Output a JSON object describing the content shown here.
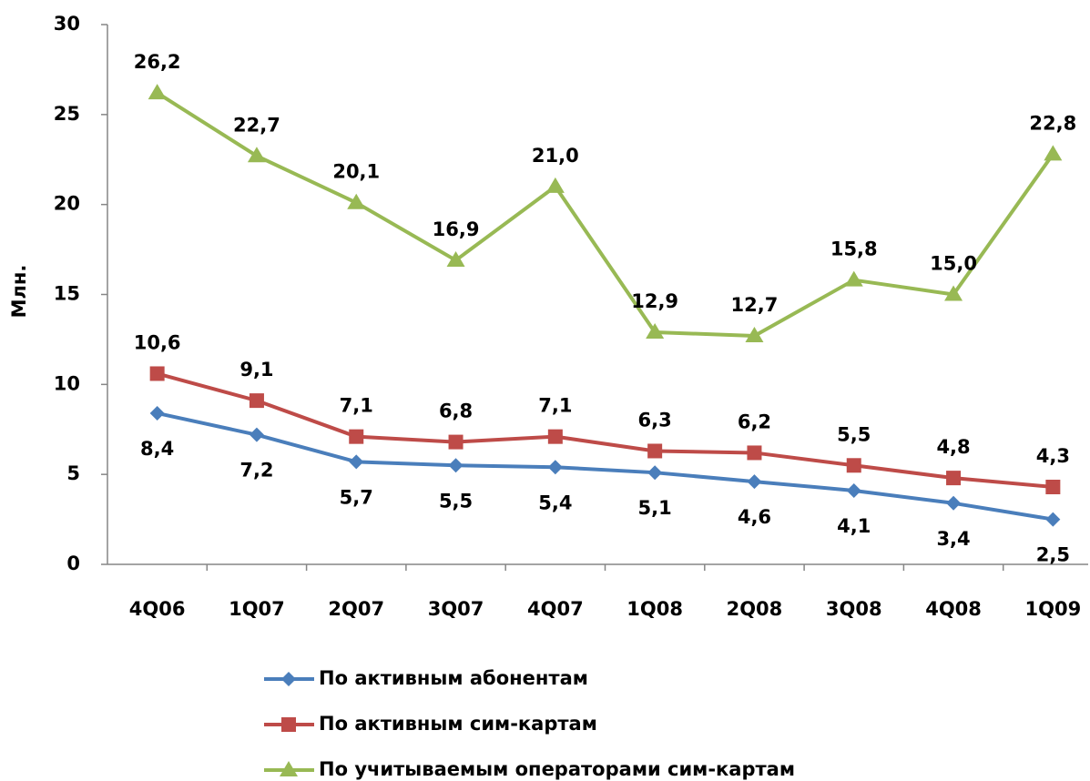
{
  "chart_data": {
    "type": "line",
    "y_label": "Млн.",
    "categories": [
      "4Q06",
      "1Q07",
      "2Q07",
      "3Q07",
      "4Q07",
      "1Q08",
      "2Q08",
      "3Q08",
      "4Q08",
      "1Q09"
    ],
    "series": [
      {
        "name": "По активным абонентам",
        "color": "#4a7ebb",
        "marker": "diamond",
        "label_position": "below",
        "values": [
          8.4,
          7.2,
          5.7,
          5.5,
          5.4,
          5.1,
          4.6,
          4.1,
          3.4,
          2.5
        ],
        "value_labels": [
          "8,4",
          "7,2",
          "5,7",
          "5,5",
          "5,4",
          "5,1",
          "4,6",
          "4,1",
          "3,4",
          "2,5"
        ]
      },
      {
        "name": "По активным сим-картам",
        "color": "#be4b48",
        "marker": "square",
        "label_position": "above",
        "values": [
          10.6,
          9.1,
          7.1,
          6.8,
          7.1,
          6.3,
          6.2,
          5.5,
          4.8,
          4.3
        ],
        "value_labels": [
          "10,6",
          "9,1",
          "7,1",
          "6,8",
          "7,1",
          "6,3",
          "6,2",
          "5,5",
          "4,8",
          "4,3"
        ]
      },
      {
        "name": "По учитываемым операторами сим-картам",
        "color": "#98b954",
        "marker": "triangle",
        "label_position": "above",
        "values": [
          26.2,
          22.7,
          20.1,
          16.9,
          21.0,
          12.9,
          12.7,
          15.8,
          15.0,
          22.8
        ],
        "value_labels": [
          "26,2",
          "22,7",
          "20,1",
          "16,9",
          "21,0",
          "12,9",
          "12,7",
          "15,8",
          "15,0",
          "22,8"
        ]
      }
    ],
    "ylim": [
      0,
      30
    ],
    "yticks": [
      0,
      5,
      10,
      15,
      20,
      25,
      30
    ],
    "grid": false,
    "legend": "bottom"
  }
}
